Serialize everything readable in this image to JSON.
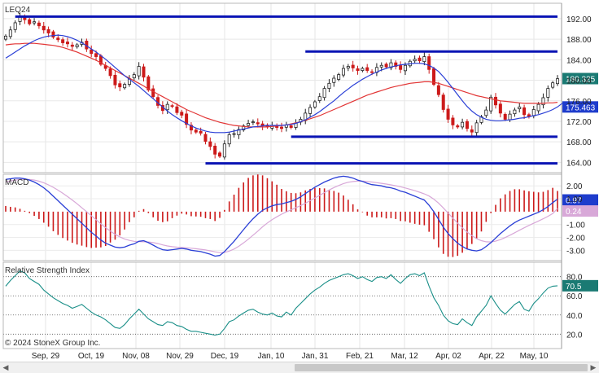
{
  "chart_data": {
    "type": "candlestick",
    "symbol": "LEQ24",
    "copyright": "© 2024 StoneX Group Inc.",
    "x_ticks": [
      "Sep, 29",
      "Oct, 19",
      "Nov, 08",
      "Nov, 29",
      "Dec, 19",
      "Jan, 10",
      "Jan, 31",
      "Feb, 21",
      "Mar, 12",
      "Apr, 02",
      "Apr, 22",
      "May, 10"
    ],
    "price_panel": {
      "yticks": [
        164,
        168,
        172,
        176,
        180,
        184,
        188,
        192
      ],
      "ylim": [
        162,
        195
      ],
      "last_price": 180.325,
      "last_price_label": "180.325",
      "ma_value_label": "175.463",
      "closes": [
        188.6,
        189.8,
        191.2,
        192.4,
        191.8,
        191,
        191.4,
        190.6,
        189.8,
        189.2,
        188.4,
        187.9,
        187.3,
        187.1,
        186.6,
        186.9,
        187.4,
        186.1,
        185.2,
        184.6,
        183.1,
        182.3,
        180.9,
        179.1,
        178.7,
        179.2,
        180.3,
        181.1,
        182.7,
        180.6,
        178.1,
        176.8,
        175.1,
        174.1,
        175.3,
        174.9,
        173.7,
        173.2,
        171.4,
        170.3,
        169.9,
        169.7,
        168.1,
        167.1,
        165.6,
        165.2,
        167.6,
        169.4,
        169.6,
        170.4,
        171.1,
        171.6,
        171.9,
        171.5,
        171.1,
        170.9,
        171.2,
        170.8,
        170.6,
        171.3,
        170.8,
        171.7,
        172.4,
        173.6,
        174.7,
        175.8,
        176.8,
        178.4,
        179.4,
        180.4,
        181.1,
        182.3,
        182.7,
        182.4,
        181.9,
        182.3,
        181.9,
        181.6,
        182.5,
        182.9,
        182.6,
        183.4,
        182.7,
        182.1,
        182.9,
        183.7,
        184.1,
        183.8,
        184.6,
        182.1,
        179.2,
        177.2,
        174.3,
        172.4,
        171.3,
        170.9,
        171.8,
        170.6,
        169.9,
        171.7,
        172.9,
        174.2,
        176.7,
        175.2,
        173.6,
        172.4,
        173.4,
        174.2,
        174.8,
        173.3,
        172.9,
        174.3,
        175.3,
        176.6,
        178.4,
        179.5,
        180.3
      ],
      "ma_fast": [
        184.3,
        184.9,
        185.5,
        186.1,
        186.7,
        187.2,
        187.7,
        188.1,
        188.4,
        188.6,
        188.7,
        188.8,
        188.7,
        188.5,
        188.2,
        187.8,
        187.3,
        186.7,
        186.1,
        185.5,
        184.8,
        184.1,
        183.3,
        182.5,
        181.7,
        180.9,
        180.2,
        179.5,
        178.8,
        178,
        177.2,
        176.4,
        175.6,
        174.8,
        174,
        173.3,
        172.7,
        172.1,
        171.6,
        171.1,
        170.7,
        170.4,
        170.1,
        169.9,
        169.8,
        169.8,
        169.8,
        169.9,
        170.1,
        170.3,
        170.5,
        170.7,
        170.9,
        171,
        171.1,
        171.2,
        171.2,
        171.2,
        171.2,
        171.3,
        171.4,
        171.6,
        171.9,
        172.3,
        172.8,
        173.3,
        173.9,
        174.6,
        175.3,
        176,
        176.8,
        177.6,
        178.3,
        179,
        179.6,
        180.2,
        180.7,
        181.2,
        181.6,
        182,
        182.3,
        182.6,
        182.8,
        183,
        183.1,
        183.2,
        183.3,
        183.3,
        183.2,
        182.9,
        182.4,
        181.7,
        180.7,
        179.6,
        178.4,
        177.2,
        176,
        174.9,
        174,
        173.3,
        172.8,
        172.4,
        172.2,
        172.1,
        172.1,
        172.2,
        172.3,
        172.4,
        172.6,
        172.7,
        172.9,
        173.1,
        173.3,
        173.6,
        173.9,
        174.3,
        174.8,
        175.5
      ],
      "ma_slow": [
        186.9,
        187,
        187.1,
        187.1,
        187.2,
        187.2,
        187.2,
        187.1,
        187,
        186.9,
        186.8,
        186.6,
        186.4,
        186.1,
        185.8,
        185.5,
        185.1,
        184.7,
        184.3,
        183.9,
        183.4,
        182.9,
        182.4,
        181.9,
        181.4,
        180.9,
        180.4,
        179.9,
        179.4,
        178.9,
        178.3,
        177.8,
        177.3,
        176.8,
        176.3,
        175.8,
        175.3,
        174.8,
        174.3,
        173.9,
        173.5,
        173.1,
        172.7,
        172.4,
        172.1,
        171.8,
        171.6,
        171.4,
        171.2,
        171.1,
        171,
        170.9,
        170.9,
        170.9,
        170.9,
        170.9,
        171,
        171.1,
        171.2,
        171.3,
        171.5,
        171.7,
        171.9,
        172.2,
        172.5,
        172.8,
        173.1,
        173.5,
        173.9,
        174.3,
        174.7,
        175.1,
        175.5,
        175.9,
        176.3,
        176.7,
        177.1,
        177.4,
        177.7,
        178,
        178.3,
        178.6,
        178.8,
        179,
        179.2,
        179.4,
        179.5,
        179.6,
        179.7,
        179.7,
        179.6,
        179.4,
        179.1,
        178.8,
        178.5,
        178.2,
        177.9,
        177.6,
        177.3,
        177,
        176.8,
        176.6,
        176.4,
        176.2,
        176,
        175.9,
        175.8,
        175.7,
        175.6,
        175.5,
        175.5,
        175.5,
        175.5,
        175.5,
        175.6,
        175.6,
        175.7
      ],
      "horizontal_lines": [
        {
          "price": 192.4,
          "from_index": 2,
          "to_index": 116
        },
        {
          "price": 185.6,
          "from_index": 63,
          "to_index": 116
        },
        {
          "price": 169,
          "from_index": 60,
          "to_index": 116
        },
        {
          "price": 163.8,
          "from_index": 42,
          "to_index": 116
        }
      ],
      "colors": {
        "up": "#222222",
        "down": "#cc1a1a",
        "ma_fast": "#2a3fd6",
        "ma_slow": "#e23535",
        "level": "#0a14b4",
        "price_badge": "#1a7a73",
        "ma_badge": "#1e3ccc"
      }
    },
    "macd_panel": {
      "label": "MACD",
      "yticks": [
        2,
        1,
        -1,
        -2,
        -3
      ],
      "ytick_labels": [
        "2.00",
        "1.00",
        "-1.00",
        "-2.00",
        "-3.00"
      ],
      "ylim": [
        -3.8,
        2.9
      ],
      "macd_label": "0.97",
      "signal_label": "0.24",
      "macd": [
        2.5,
        2.55,
        2.6,
        2.6,
        2.55,
        2.45,
        2.3,
        2.1,
        1.85,
        1.55,
        1.2,
        0.85,
        0.5,
        0.15,
        -0.2,
        -0.55,
        -0.9,
        -1.25,
        -1.6,
        -1.9,
        -2.2,
        -2.45,
        -2.6,
        -2.75,
        -2.8,
        -2.75,
        -2.6,
        -2.5,
        -2.3,
        -2.25,
        -2.4,
        -2.6,
        -2.8,
        -2.95,
        -3,
        -2.95,
        -2.9,
        -2.85,
        -2.9,
        -3,
        -3.05,
        -3.1,
        -3.2,
        -3.3,
        -3.45,
        -3.4,
        -3.1,
        -2.7,
        -2.3,
        -1.85,
        -1.4,
        -0.95,
        -0.55,
        -0.2,
        0.1,
        0.3,
        0.45,
        0.55,
        0.6,
        0.7,
        0.8,
        0.95,
        1.15,
        1.4,
        1.65,
        1.9,
        2.1,
        2.3,
        2.45,
        2.6,
        2.7,
        2.75,
        2.7,
        2.6,
        2.45,
        2.35,
        2.2,
        2.1,
        2.05,
        2,
        1.9,
        1.85,
        1.75,
        1.6,
        1.5,
        1.35,
        1.2,
        1.05,
        0.9,
        0.5,
        0,
        -0.6,
        -1.2,
        -1.7,
        -2.1,
        -2.45,
        -2.7,
        -2.9,
        -3,
        -3.05,
        -2.95,
        -2.7,
        -2.4,
        -2.05,
        -1.7,
        -1.4,
        -1.1,
        -0.85,
        -0.65,
        -0.5,
        -0.35,
        -0.2,
        -0.05,
        0.15,
        0.4,
        0.7,
        0.97
      ],
      "signal": [
        2.3,
        2.38,
        2.45,
        2.5,
        2.52,
        2.5,
        2.45,
        2.36,
        2.24,
        2.08,
        1.89,
        1.67,
        1.43,
        1.17,
        0.9,
        0.61,
        0.3,
        0,
        -0.32,
        -0.63,
        -0.94,
        -1.24,
        -1.51,
        -1.76,
        -1.96,
        -2.12,
        -2.23,
        -2.3,
        -2.33,
        -2.34,
        -2.35,
        -2.4,
        -2.48,
        -2.58,
        -2.66,
        -2.72,
        -2.76,
        -2.78,
        -2.8,
        -2.84,
        -2.88,
        -2.92,
        -2.97,
        -3.04,
        -3.12,
        -3.18,
        -3.16,
        -3.06,
        -2.9,
        -2.69,
        -2.43,
        -2.14,
        -1.83,
        -1.51,
        -1.18,
        -0.88,
        -0.62,
        -0.4,
        -0.2,
        -0.02,
        0.14,
        0.3,
        0.47,
        0.65,
        0.85,
        1.06,
        1.27,
        1.48,
        1.68,
        1.87,
        2.03,
        2.18,
        2.28,
        2.34,
        2.37,
        2.37,
        2.34,
        2.3,
        2.25,
        2.2,
        2.14,
        2.08,
        2.01,
        1.93,
        1.84,
        1.74,
        1.63,
        1.51,
        1.38,
        1.21,
        0.97,
        0.66,
        0.29,
        -0.11,
        -0.5,
        -0.89,
        -1.25,
        -1.58,
        -1.86,
        -2.1,
        -2.25,
        -2.34,
        -2.35,
        -2.29,
        -2.17,
        -2.01,
        -1.83,
        -1.64,
        -1.44,
        -1.25,
        -1.07,
        -0.9,
        -0.73,
        -0.55,
        -0.36,
        -0.14,
        0.24
      ],
      "colors": {
        "macd": "#2a3fd6",
        "signal": "#d8a8d8",
        "hist": "#cc1a1a",
        "macd_badge": "#1e3ccc",
        "signal_badge": "#d8a8d8"
      }
    },
    "rsi_panel": {
      "label": "Relative Strength Index",
      "yticks": [
        20,
        40,
        60,
        80
      ],
      "ytick_labels": [
        "20.0",
        "40.0",
        "60.0",
        "80.0"
      ],
      "ylim": [
        5,
        95
      ],
      "last_label": "70.5",
      "rsi": [
        70,
        76,
        81,
        86,
        84,
        78,
        75,
        72,
        66,
        62,
        58,
        55,
        52,
        50,
        47,
        49,
        51,
        47,
        43,
        40,
        38,
        35,
        31,
        27,
        26,
        30,
        36,
        41,
        46,
        41,
        36,
        33,
        30,
        29,
        33,
        32,
        29,
        28,
        25,
        23,
        23,
        22,
        21,
        20,
        19,
        20,
        26,
        33,
        35,
        39,
        42,
        45,
        46,
        43,
        41,
        40,
        42,
        39,
        38,
        43,
        40,
        47,
        52,
        57,
        62,
        66,
        69,
        73,
        76,
        78,
        80,
        82,
        83,
        81,
        78,
        80,
        77,
        75,
        79,
        80,
        78,
        82,
        77,
        73,
        78,
        82,
        83,
        81,
        84,
        70,
        58,
        50,
        40,
        34,
        31,
        30,
        36,
        32,
        29,
        38,
        44,
        50,
        60,
        52,
        45,
        41,
        46,
        51,
        54,
        46,
        44,
        52,
        57,
        63,
        68,
        70,
        70.5
      ],
      "colors": {
        "rsi": "#1a8f88",
        "badge": "#1a7a73",
        "dotted": "#555555"
      }
    }
  }
}
